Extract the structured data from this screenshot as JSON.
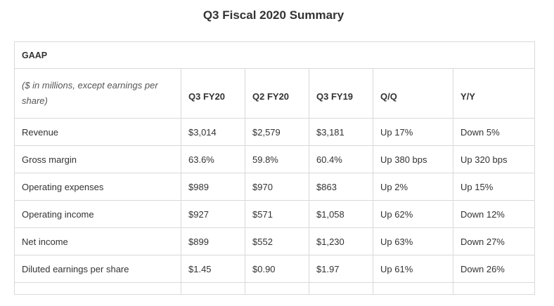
{
  "title": "Q3 Fiscal 2020 Summary",
  "table": {
    "section_label": "GAAP",
    "unit_note": "($ in millions, except earnings per share)",
    "columns": [
      "Q3 FY20",
      "Q2 FY20",
      "Q3 FY19",
      "Q/Q",
      "Y/Y"
    ],
    "rows": [
      {
        "label": "Revenue",
        "cells": [
          "$3,014",
          "$2,579",
          "$3,181",
          "Up 17%",
          "Down 5%"
        ]
      },
      {
        "label": "Gross margin",
        "cells": [
          "63.6%",
          "59.8%",
          "60.4%",
          "Up 380 bps",
          "Up 320 bps"
        ]
      },
      {
        "label": "Operating expenses",
        "cells": [
          "$989",
          "$970",
          "$863",
          "Up 2%",
          "Up 15%"
        ]
      },
      {
        "label": "Operating income",
        "cells": [
          "$927",
          "$571",
          "$1,058",
          "Up 62%",
          "Down 12%"
        ]
      },
      {
        "label": "Net income",
        "cells": [
          "$899",
          "$552",
          "$1,230",
          "Up 63%",
          "Down 27%"
        ]
      },
      {
        "label": "Diluted earnings per share",
        "cells": [
          "$1.45",
          "$0.90",
          "$1.97",
          "Up 61%",
          "Down 26%"
        ]
      }
    ]
  }
}
